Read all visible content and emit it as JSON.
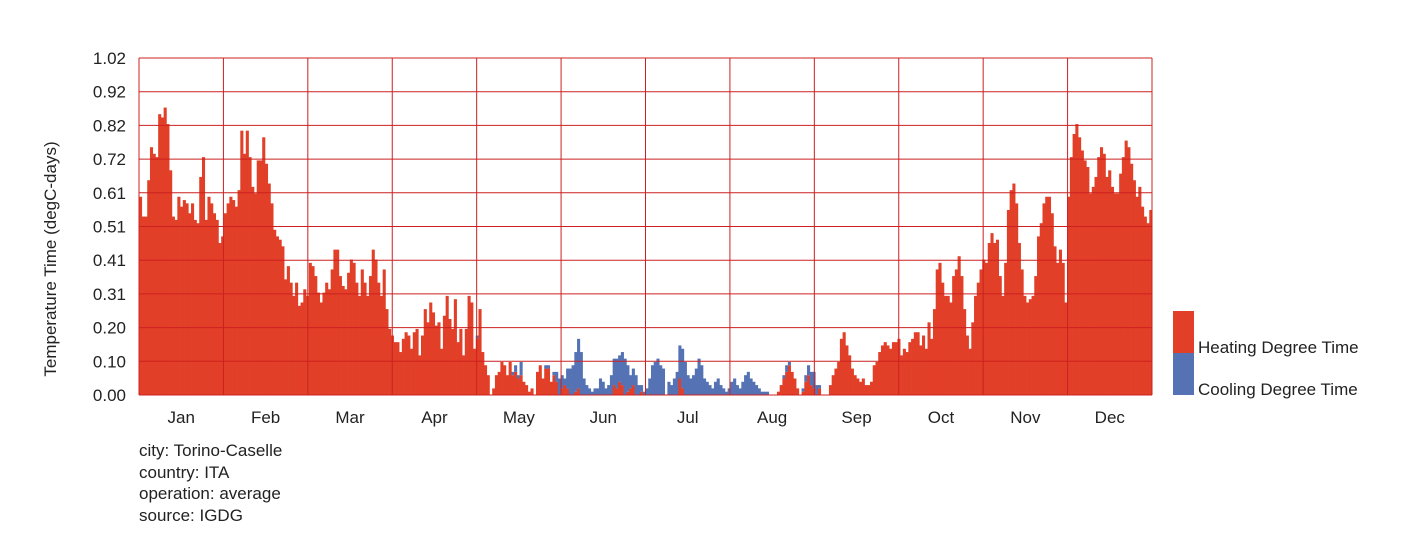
{
  "chart_data": {
    "type": "bar",
    "stacked": true,
    "ylabel": "Temperature Time (degC-days)",
    "ylim": [
      0,
      1.02
    ],
    "yticks": [
      "0.00",
      "0.10",
      "0.20",
      "0.31",
      "0.41",
      "0.51",
      "0.61",
      "0.72",
      "0.82",
      "0.92",
      "1.02"
    ],
    "months": [
      "Jan",
      "Feb",
      "Mar",
      "Apr",
      "May",
      "Jun",
      "Jul",
      "Aug",
      "Sep",
      "Oct",
      "Nov",
      "Dec"
    ],
    "grid": true,
    "legend_position": "right",
    "series": [
      {
        "name": "Heating Degree Time",
        "color": "#e23f28",
        "values": [
          0.6,
          0.54,
          0.54,
          0.65,
          0.75,
          0.73,
          0.72,
          0.85,
          0.84,
          0.87,
          0.82,
          0.68,
          0.54,
          0.53,
          0.6,
          0.57,
          0.59,
          0.58,
          0.55,
          0.58,
          0.53,
          0.52,
          0.66,
          0.72,
          0.53,
          0.6,
          0.58,
          0.55,
          0.53,
          0.46,
          0.48,
          0.55,
          0.58,
          0.6,
          0.59,
          0.57,
          0.62,
          0.8,
          0.73,
          0.8,
          0.72,
          0.63,
          0.61,
          0.71,
          0.71,
          0.78,
          0.7,
          0.64,
          0.58,
          0.5,
          0.48,
          0.47,
          0.45,
          0.35,
          0.39,
          0.34,
          0.3,
          0.34,
          0.27,
          0.28,
          0.32,
          0.3,
          0.4,
          0.39,
          0.36,
          0.31,
          0.28,
          0.31,
          0.34,
          0.32,
          0.38,
          0.44,
          0.44,
          0.36,
          0.33,
          0.32,
          0.37,
          0.41,
          0.4,
          0.34,
          0.3,
          0.38,
          0.34,
          0.3,
          0.36,
          0.44,
          0.41,
          0.34,
          0.3,
          0.38,
          0.26,
          0.2,
          0.18,
          0.16,
          0.16,
          0.13,
          0.17,
          0.19,
          0.18,
          0.14,
          0.19,
          0.2,
          0.12,
          0.18,
          0.26,
          0.22,
          0.28,
          0.25,
          0.21,
          0.22,
          0.14,
          0.24,
          0.3,
          0.23,
          0.2,
          0.29,
          0.16,
          0.2,
          0.12,
          0.2,
          0.3,
          0.28,
          0.14,
          0.17,
          0.26,
          0.13,
          0.09,
          0.06,
          0.0,
          0.02,
          0.06,
          0.07,
          0.1,
          0.09,
          0.06,
          0.1,
          0.06,
          0.07,
          0.05,
          0.06,
          0.04,
          0.03,
          0.01,
          0.02,
          0.0,
          0.07,
          0.09,
          0.05,
          0.08,
          0.08,
          0.04,
          0.06,
          0.04,
          0.0,
          0.02,
          0.03,
          0.02,
          0.0,
          0.0,
          0.01,
          0.02,
          0.0,
          0.0,
          0.0,
          0.0,
          0.0,
          0.0,
          0.0,
          0.0,
          0.0,
          0.0,
          0.0,
          0.0,
          0.03,
          0.02,
          0.04,
          0.03,
          0.0,
          0.01,
          0.02,
          0.03,
          0.0,
          0.0,
          0.01,
          0.0,
          0.0,
          0.0,
          0.0,
          0.0,
          0.0,
          0.0,
          0.0,
          0.0,
          0.0,
          0.0,
          0.0,
          0.0,
          0.05,
          0.02,
          0.0,
          0.0,
          0.0,
          0.0,
          0.0,
          0.0,
          0.0,
          0.0,
          0.0,
          0.0,
          0.0,
          0.0,
          0.0,
          0.0,
          0.0,
          0.0,
          0.0,
          0.0,
          0.0,
          0.0,
          0.0,
          0.0,
          0.0,
          0.0,
          0.0,
          0.0,
          0.0,
          0.0,
          0.0,
          0.0,
          0.0,
          0.0,
          0.0,
          0.0,
          0.01,
          0.03,
          0.05,
          0.07,
          0.09,
          0.07,
          0.05,
          0.02,
          0.0,
          0.01,
          0.04,
          0.06,
          0.03,
          0.02,
          0.0,
          0.02,
          0.0,
          0.0,
          0.0,
          0.03,
          0.06,
          0.08,
          0.1,
          0.17,
          0.19,
          0.15,
          0.12,
          0.08,
          0.06,
          0.05,
          0.04,
          0.05,
          0.03,
          0.03,
          0.04,
          0.09,
          0.1,
          0.13,
          0.15,
          0.16,
          0.15,
          0.14,
          0.16,
          0.16,
          0.17,
          0.12,
          0.14,
          0.13,
          0.16,
          0.17,
          0.19,
          0.19,
          0.15,
          0.18,
          0.14,
          0.22,
          0.17,
          0.26,
          0.38,
          0.4,
          0.34,
          0.3,
          0.3,
          0.28,
          0.36,
          0.38,
          0.42,
          0.36,
          0.26,
          0.18,
          0.14,
          0.22,
          0.3,
          0.34,
          0.38,
          0.41,
          0.4,
          0.46,
          0.49,
          0.46,
          0.47,
          0.36,
          0.3,
          0.4,
          0.56,
          0.62,
          0.64,
          0.58,
          0.46,
          0.38,
          0.3,
          0.28,
          0.29,
          0.3,
          0.36,
          0.48,
          0.52,
          0.58,
          0.6,
          0.6,
          0.55,
          0.45,
          0.4,
          0.44,
          0.4,
          0.28,
          0.6,
          0.72,
          0.79,
          0.82,
          0.78,
          0.74,
          0.71,
          0.69,
          0.61,
          0.63,
          0.66,
          0.72,
          0.75,
          0.73,
          0.66,
          0.68,
          0.63,
          0.61,
          0.61,
          0.67,
          0.72,
          0.77,
          0.75,
          0.7,
          0.65,
          0.6,
          0.63,
          0.57,
          0.54,
          0.52,
          0.56
        ]
      },
      {
        "name": "Cooling Degree Time",
        "color": "#5472b4",
        "values": [
          0,
          0,
          0,
          0,
          0,
          0,
          0,
          0,
          0,
          0,
          0,
          0,
          0,
          0,
          0,
          0,
          0,
          0,
          0,
          0,
          0,
          0,
          0,
          0,
          0,
          0,
          0,
          0,
          0,
          0,
          0,
          0,
          0,
          0,
          0,
          0,
          0,
          0,
          0,
          0,
          0,
          0,
          0,
          0,
          0,
          0,
          0,
          0,
          0,
          0,
          0,
          0,
          0,
          0,
          0,
          0,
          0,
          0,
          0,
          0,
          0,
          0,
          0,
          0,
          0,
          0,
          0,
          0,
          0,
          0,
          0,
          0,
          0,
          0,
          0,
          0,
          0,
          0,
          0,
          0,
          0,
          0,
          0,
          0,
          0,
          0,
          0,
          0,
          0,
          0,
          0,
          0,
          0,
          0,
          0,
          0,
          0,
          0,
          0,
          0,
          0,
          0,
          0,
          0,
          0,
          0,
          0,
          0,
          0,
          0,
          0,
          0,
          0,
          0,
          0,
          0,
          0,
          0,
          0,
          0,
          0,
          0,
          0,
          0.01,
          0,
          0,
          0,
          0,
          0,
          0,
          0,
          0,
          0,
          0,
          0,
          0,
          0.01,
          0.02,
          0.01,
          0.04,
          0,
          0,
          0,
          0,
          0,
          0,
          0,
          0,
          0.01,
          0.01,
          0,
          0.01,
          0.03,
          0.05,
          0.04,
          0.02,
          0.06,
          0.08,
          0.09,
          0.12,
          0.15,
          0.13,
          0.05,
          0.03,
          0.02,
          0.01,
          0.02,
          0.02,
          0.05,
          0.04,
          0.02,
          0.03,
          0.06,
          0.08,
          0.09,
          0.08,
          0.1,
          0.11,
          0.08,
          0.04,
          0.05,
          0.06,
          0.03,
          0.02,
          0.01,
          0.02,
          0.05,
          0.09,
          0.1,
          0.11,
          0.09,
          0.08,
          0,
          0.04,
          0.03,
          0.05,
          0.07,
          0.1,
          0.12,
          0.1,
          0.06,
          0.05,
          0.06,
          0.08,
          0.11,
          0.09,
          0.05,
          0.04,
          0.03,
          0.02,
          0.04,
          0.05,
          0.03,
          0.02,
          0.01,
          0.02,
          0.04,
          0.05,
          0.03,
          0.02,
          0.04,
          0.06,
          0.07,
          0.05,
          0.04,
          0.03,
          0.02,
          0.01,
          0.01,
          0.01,
          0,
          0,
          0,
          0,
          0,
          0.01,
          0.02,
          0.01,
          0,
          0,
          0,
          0,
          0.01,
          0.02,
          0.03,
          0.04,
          0.05,
          0.03,
          0.01,
          0,
          0,
          0,
          0,
          0,
          0,
          0,
          0,
          0,
          0,
          0,
          0,
          0,
          0,
          0,
          0,
          0,
          0,
          0,
          0,
          0,
          0,
          0,
          0,
          0,
          0,
          0,
          0,
          0,
          0,
          0,
          0,
          0,
          0,
          0,
          0,
          0,
          0,
          0,
          0,
          0,
          0,
          0,
          0,
          0,
          0,
          0,
          0,
          0,
          0,
          0,
          0,
          0,
          0,
          0,
          0,
          0,
          0,
          0,
          0,
          0,
          0,
          0,
          0,
          0,
          0,
          0,
          0,
          0,
          0,
          0,
          0,
          0,
          0,
          0,
          0,
          0,
          0,
          0,
          0,
          0,
          0,
          0,
          0,
          0,
          0,
          0,
          0,
          0,
          0,
          0,
          0,
          0,
          0,
          0,
          0,
          0,
          0,
          0,
          0,
          0,
          0,
          0,
          0,
          0,
          0,
          0,
          0,
          0,
          0,
          0,
          0,
          0,
          0,
          0,
          0
        ]
      }
    ]
  },
  "info": {
    "city": "city: Torino-Caselle",
    "country": "country: ITA",
    "operation": "operation: average",
    "source": "source: IGDG"
  },
  "colors": {
    "grid": "#cc2020",
    "heating": "#e23f28",
    "cooling": "#5472b4"
  }
}
